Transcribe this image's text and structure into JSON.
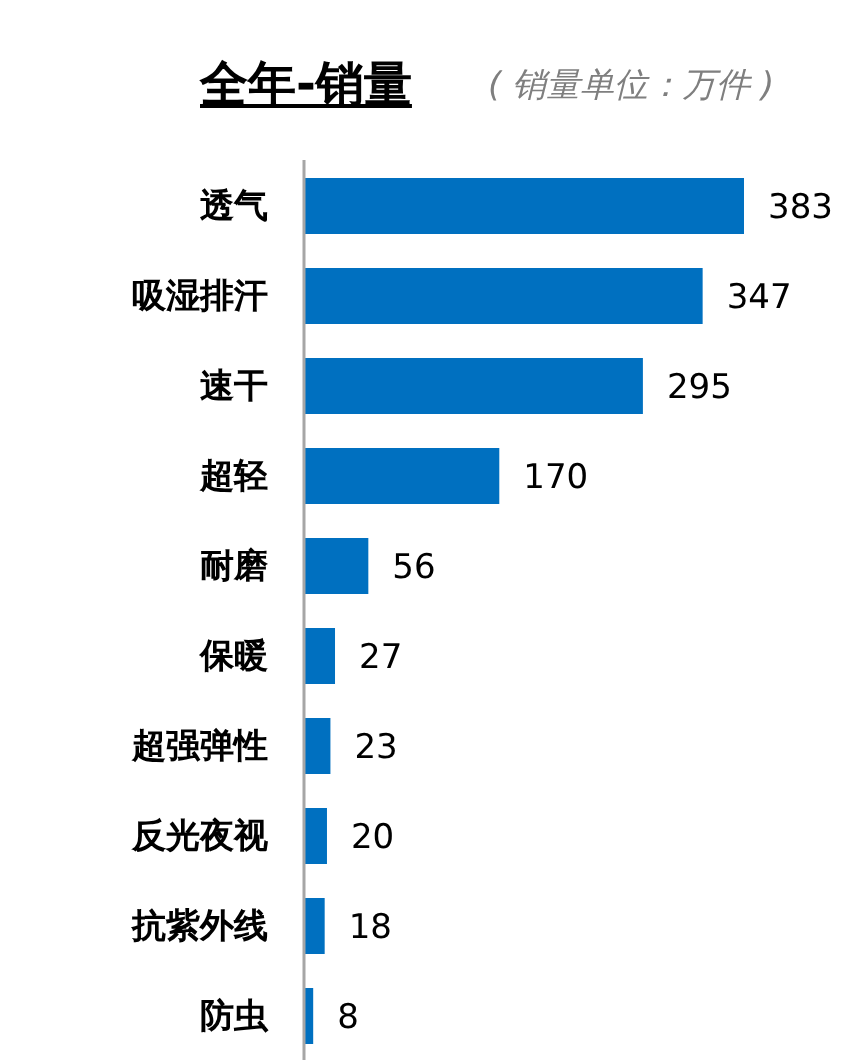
{
  "chart_data": {
    "type": "bar",
    "orientation": "horizontal",
    "title": "全年-销量",
    "subtitle": "( 销量单位：万件 )",
    "categories": [
      "透气",
      "吸湿排汗",
      "速干",
      "超轻",
      "耐磨",
      "保暖",
      "超强弹性",
      "反光夜视",
      "抗紫外线",
      "防虫"
    ],
    "values": [
      383,
      347,
      295,
      170,
      56,
      27,
      23,
      20,
      18,
      8
    ],
    "color": "#0070c0",
    "data_labels": true
  }
}
